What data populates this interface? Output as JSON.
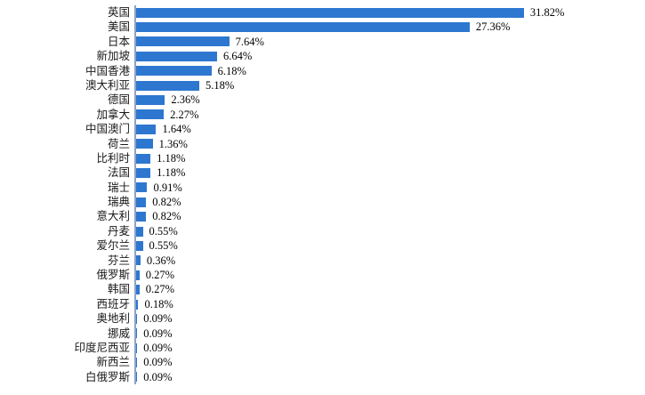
{
  "chart_data": {
    "type": "bar",
    "orientation": "horizontal",
    "title": "",
    "xlabel": "",
    "ylabel": "",
    "grid": false,
    "legend": false,
    "xlim": [
      0,
      35
    ],
    "bar_color": "#2E77D0",
    "axis_line_color": "#8EA3C8",
    "categories": [
      "英国",
      "美国",
      "日本",
      "新加坡",
      "中国香港",
      "澳大利亚",
      "德国",
      "加拿大",
      "中国澳门",
      "荷兰",
      "比利时",
      "法国",
      "瑞士",
      "瑞典",
      "意大利",
      "丹麦",
      "爱尔兰",
      "芬兰",
      "俄罗斯",
      "韩国",
      "西班牙",
      "奥地利",
      "挪威",
      "印度尼西亚",
      "新西兰",
      "白俄罗斯"
    ],
    "values": [
      31.82,
      27.36,
      7.64,
      6.64,
      6.18,
      5.18,
      2.36,
      2.27,
      1.64,
      1.36,
      1.18,
      1.18,
      0.91,
      0.82,
      0.82,
      0.55,
      0.55,
      0.36,
      0.27,
      0.27,
      0.18,
      0.09,
      0.09,
      0.09,
      0.09,
      0.09
    ],
    "value_labels": [
      "31.82%",
      "27.36%",
      "7.64%",
      "6.64%",
      "6.18%",
      "5.18%",
      "2.36%",
      "2.27%",
      "1.64%",
      "1.36%",
      "1.18%",
      "1.18%",
      "0.91%",
      "0.82%",
      "0.82%",
      "0.55%",
      "0.55%",
      "0.36%",
      "0.27%",
      "0.27%",
      "0.18%",
      "0.09%",
      "0.09%",
      "0.09%",
      "0.09%",
      "0.09%"
    ]
  }
}
